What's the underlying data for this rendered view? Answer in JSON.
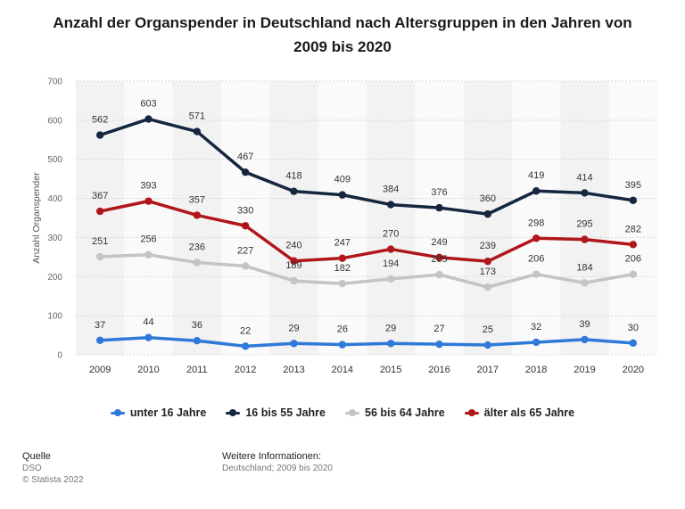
{
  "chart_data": {
    "type": "line",
    "title": "Anzahl der Organspender in Deutschland nach Altersgruppen in den Jahren von 2009 bis 2020",
    "xlabel": "",
    "ylabel": "Anzahl Organspender",
    "ylim": [
      0,
      700
    ],
    "yticks": [
      0,
      100,
      200,
      300,
      400,
      500,
      600,
      700
    ],
    "grid": true,
    "legend_position": "bottom",
    "categories": [
      "2009",
      "2010",
      "2011",
      "2012",
      "2013",
      "2014",
      "2015",
      "2016",
      "2017",
      "2018",
      "2019",
      "2020"
    ],
    "series": [
      {
        "name": "unter 16 Jahre",
        "color": "#2f7ad8",
        "values": [
          37,
          44,
          36,
          22,
          29,
          26,
          29,
          27,
          25,
          32,
          39,
          30
        ]
      },
      {
        "name": "16 bis 55 Jahre",
        "color": "#15263f",
        "values": [
          562,
          603,
          571,
          467,
          418,
          409,
          384,
          376,
          360,
          419,
          414,
          395
        ]
      },
      {
        "name": "56 bis 64 Jahre",
        "color": "#c4c4c4",
        "values": [
          251,
          256,
          236,
          227,
          189,
          182,
          194,
          205,
          173,
          206,
          184,
          206
        ]
      },
      {
        "name": "älter als 65 Jahre",
        "color": "#b0161a",
        "values": [
          367,
          393,
          357,
          330,
          240,
          247,
          270,
          249,
          239,
          298,
          295,
          282
        ]
      }
    ]
  },
  "footer": {
    "source_heading": "Quelle",
    "source_name": "DSO",
    "copyright": "© Statista 2022",
    "info_heading": "Weitere Informationen:",
    "info_text": "Deutschland; 2009 bis 2020"
  }
}
